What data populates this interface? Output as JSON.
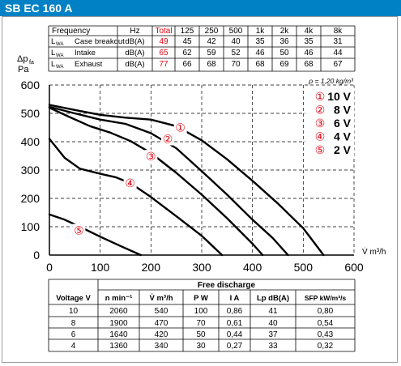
{
  "header": {
    "title": "SB EC 160 A",
    "bar_color": "#0081c6"
  },
  "sound_table": {
    "headers": [
      "Frequency",
      "Hz",
      "Total",
      "125",
      "250",
      "500",
      "1k",
      "2k",
      "4k",
      "8k"
    ],
    "rows": [
      {
        "param_main": "L",
        "param_sub": "WA",
        "label": "Case breakout",
        "unit": "dB(A)",
        "total": "49",
        "values": [
          "45",
          "42",
          "40",
          "35",
          "36",
          "35",
          "31"
        ]
      },
      {
        "param_main": "L",
        "param_sub": "WA",
        "label": "Intake",
        "unit": "dB(A)",
        "total": "65",
        "values": [
          "62",
          "59",
          "52",
          "46",
          "50",
          "46",
          "44"
        ]
      },
      {
        "param_main": "L",
        "param_sub": "WA",
        "label": "Exhaust",
        "unit": "dB(A)",
        "total": "77",
        "values": [
          "66",
          "68",
          "70",
          "68",
          "69",
          "68",
          "67"
        ]
      }
    ],
    "total_color": "#e30613"
  },
  "chart_data": {
    "type": "line",
    "ylabel_main": "Δp",
    "ylabel_sub": "fa",
    "ylabel_unit": "Pa",
    "xlabel": "V̇ m³/h",
    "xlim": [
      0,
      600
    ],
    "ylim": [
      0,
      600
    ],
    "xticks": [
      0,
      100,
      200,
      300,
      400,
      500,
      600
    ],
    "yticks": [
      0,
      100,
      200,
      300,
      400,
      500,
      600
    ],
    "grid": "dashed",
    "density_note": "ρ = 1,20 kg/m³",
    "marker_color": "#e30613",
    "series": [
      {
        "name": "10 V",
        "marker": "①",
        "marker_at": [
          258,
          450
        ],
        "points": [
          [
            0,
            530
          ],
          [
            50,
            512
          ],
          [
            100,
            495
          ],
          [
            150,
            485
          ],
          [
            200,
            478
          ],
          [
            250,
            455
          ],
          [
            300,
            405
          ],
          [
            350,
            338
          ],
          [
            400,
            262
          ],
          [
            450,
            182
          ],
          [
            500,
            95
          ],
          [
            540,
            0
          ]
        ]
      },
      {
        "name": "8 V",
        "marker": "②",
        "marker_at": [
          233,
          410
        ],
        "points": [
          [
            0,
            523
          ],
          [
            50,
            500
          ],
          [
            100,
            478
          ],
          [
            150,
            463
          ],
          [
            200,
            430
          ],
          [
            250,
            377
          ],
          [
            300,
            296
          ],
          [
            350,
            213
          ],
          [
            400,
            125
          ],
          [
            440,
            60
          ],
          [
            470,
            0
          ]
        ]
      },
      {
        "name": "6 V",
        "marker": "③",
        "marker_at": [
          200,
          348
        ],
        "points": [
          [
            0,
            520
          ],
          [
            40,
            487
          ],
          [
            80,
            455
          ],
          [
            120,
            432
          ],
          [
            160,
            402
          ],
          [
            200,
            360
          ],
          [
            250,
            290
          ],
          [
            300,
            213
          ],
          [
            350,
            130
          ],
          [
            400,
            40
          ],
          [
            420,
            0
          ]
        ]
      },
      {
        "name": "4 V",
        "marker": "④",
        "marker_at": [
          159,
          255
        ],
        "points": [
          [
            0,
            410
          ],
          [
            30,
            343
          ],
          [
            60,
            305
          ],
          [
            100,
            287
          ],
          [
            130,
            275
          ],
          [
            160,
            253
          ],
          [
            200,
            205
          ],
          [
            250,
            137
          ],
          [
            300,
            68
          ],
          [
            340,
            0
          ]
        ]
      },
      {
        "name": "2 V",
        "marker": "⑤",
        "marker_at": [
          58,
          87
        ],
        "points": [
          [
            0,
            143
          ],
          [
            30,
            125
          ],
          [
            60,
            100
          ],
          [
            100,
            65
          ],
          [
            140,
            32
          ],
          [
            180,
            0
          ]
        ]
      }
    ]
  },
  "legend": {
    "items": [
      {
        "marker": "①",
        "label": "10 V"
      },
      {
        "marker": "②",
        "label": "8 V"
      },
      {
        "marker": "③",
        "label": "6 V"
      },
      {
        "marker": "④",
        "label": "4 V"
      },
      {
        "marker": "⑤",
        "label": "2 V"
      }
    ]
  },
  "discharge_table": {
    "group_header": "Free discharge",
    "headers": [
      "Voltage V",
      "n min⁻¹",
      "V̇ m³/h",
      "P W",
      "I A",
      "Lp dB(A)",
      "SFP kW/m³/s"
    ],
    "rows": [
      [
        "10",
        "2060",
        "540",
        "100",
        "0,86",
        "41",
        "0,80"
      ],
      [
        "8",
        "1900",
        "470",
        "70",
        "0,61",
        "40",
        "0,54"
      ],
      [
        "6",
        "1640",
        "420",
        "50",
        "0,44",
        "37",
        "0,43"
      ],
      [
        "4",
        "1360",
        "340",
        "30",
        "0,27",
        "33",
        "0,32"
      ]
    ]
  }
}
